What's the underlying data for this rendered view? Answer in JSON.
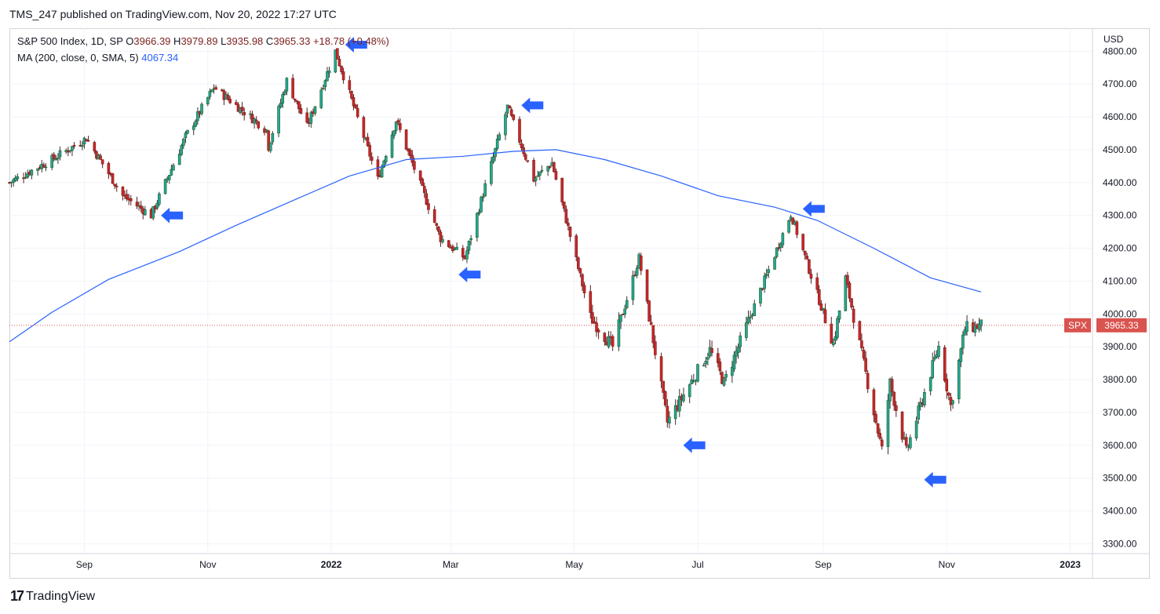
{
  "header": {
    "published": "TMS_247 published on TradingView.com, Nov 20, 2022 17:27 UTC"
  },
  "legend": {
    "symbol": "S&P 500 Index, 1D, SP",
    "o_label": "O",
    "o": "3966.39",
    "h_label": "H",
    "h": "3979.89",
    "l_label": "L",
    "l": "3935.98",
    "c_label": "C",
    "c": "3965.33",
    "change": "+18.78 (+0.48%)",
    "ma_label": "MA (200, close, 0, SMA, 5)",
    "ma_value": "4067.34"
  },
  "footer": {
    "logo": "17",
    "brand": "TradingView"
  },
  "colors": {
    "up": "#26a69a",
    "up_stroke": "#1b5e20",
    "down": "#c62828",
    "ma": "#2962ff",
    "arrow": "#2962ff",
    "price_tag": "#d9534f",
    "grid": "#f0f3fa"
  },
  "chart_data": {
    "type": "candlestick",
    "currency": "USD",
    "symbol": "SPX",
    "last_price": "3965.33",
    "ylim": [
      3270,
      4870
    ],
    "y_ticks": [
      "3300.00",
      "3400.00",
      "3500.00",
      "3600.00",
      "3700.00",
      "3800.00",
      "3900.00",
      "4000.00",
      "4100.00",
      "4200.00",
      "4300.00",
      "4400.00",
      "4500.00",
      "4600.00",
      "4700.00",
      "4800.00"
    ],
    "x_range": [
      "2021-07-26",
      "2023-01-12"
    ],
    "x_ticks": [
      {
        "label": "Sep",
        "date": "2021-09-01"
      },
      {
        "label": "Nov",
        "date": "2021-11-01"
      },
      {
        "label": "2022",
        "date": "2022-01-01",
        "bold": true
      },
      {
        "label": "Mar",
        "date": "2022-03-01"
      },
      {
        "label": "May",
        "date": "2022-05-01"
      },
      {
        "label": "Jul",
        "date": "2022-07-01"
      },
      {
        "label": "Sep",
        "date": "2022-09-01"
      },
      {
        "label": "Nov",
        "date": "2022-11-01"
      },
      {
        "label": "2023",
        "date": "2023-01-01",
        "bold": true
      }
    ],
    "price_anchors": [
      [
        "2021-07-26",
        4400
      ],
      [
        "2021-08-16",
        4470
      ],
      [
        "2021-09-02",
        4535
      ],
      [
        "2021-09-20",
        4360
      ],
      [
        "2021-10-04",
        4300
      ],
      [
        "2021-10-21",
        4540
      ],
      [
        "2021-11-04",
        4690
      ],
      [
        "2021-11-30",
        4560
      ],
      [
        "2021-12-01",
        4510
      ],
      [
        "2021-12-10",
        4710
      ],
      [
        "2021-12-20",
        4570
      ],
      [
        "2022-01-03",
        4800
      ],
      [
        "2022-01-24",
        4410
      ],
      [
        "2022-02-02",
        4590
      ],
      [
        "2022-02-24",
        4230
      ],
      [
        "2022-03-08",
        4170
      ],
      [
        "2022-03-29",
        4630
      ],
      [
        "2022-04-11",
        4410
      ],
      [
        "2022-04-20",
        4460
      ],
      [
        "2022-05-09",
        3990
      ],
      [
        "2022-05-20",
        3900
      ],
      [
        "2022-06-02",
        4170
      ],
      [
        "2022-06-16",
        3670
      ],
      [
        "2022-07-07",
        3890
      ],
      [
        "2022-07-14",
        3790
      ],
      [
        "2022-08-16",
        4305
      ],
      [
        "2022-09-06",
        3910
      ],
      [
        "2022-09-12",
        4110
      ],
      [
        "2022-09-30",
        3585
      ],
      [
        "2022-10-04",
        3790
      ],
      [
        "2022-10-12",
        3580
      ],
      [
        "2022-10-28",
        3900
      ],
      [
        "2022-11-03",
        3720
      ],
      [
        "2022-11-10",
        3956
      ],
      [
        "2022-11-18",
        3965
      ]
    ],
    "ma_200": [
      [
        "2021-07-26",
        3915
      ],
      [
        "2021-08-16",
        4005
      ],
      [
        "2021-09-13",
        4105
      ],
      [
        "2021-10-18",
        4190
      ],
      [
        "2021-11-15",
        4270
      ],
      [
        "2021-12-13",
        4345
      ],
      [
        "2022-01-10",
        4420
      ],
      [
        "2022-02-07",
        4470
      ],
      [
        "2022-03-07",
        4480
      ],
      [
        "2022-04-01",
        4495
      ],
      [
        "2022-04-22",
        4500
      ],
      [
        "2022-05-16",
        4470
      ],
      [
        "2022-06-13",
        4420
      ],
      [
        "2022-07-11",
        4360
      ],
      [
        "2022-08-08",
        4325
      ],
      [
        "2022-08-29",
        4285
      ],
      [
        "2022-09-26",
        4200
      ],
      [
        "2022-10-24",
        4110
      ],
      [
        "2022-11-18",
        4067
      ]
    ],
    "markers": [
      {
        "date": "2021-10-05",
        "price": 4300,
        "dir": "left"
      },
      {
        "date": "2022-01-04",
        "price": 4820,
        "dir": "left"
      },
      {
        "date": "2022-03-01",
        "price": 4120,
        "dir": "left"
      },
      {
        "date": "2022-04-01",
        "price": 4635,
        "dir": "left"
      },
      {
        "date": "2022-06-20",
        "price": 3600,
        "dir": "left"
      },
      {
        "date": "2022-08-18",
        "price": 4320,
        "dir": "left"
      },
      {
        "date": "2022-10-17",
        "price": 3495,
        "dir": "left"
      }
    ]
  }
}
